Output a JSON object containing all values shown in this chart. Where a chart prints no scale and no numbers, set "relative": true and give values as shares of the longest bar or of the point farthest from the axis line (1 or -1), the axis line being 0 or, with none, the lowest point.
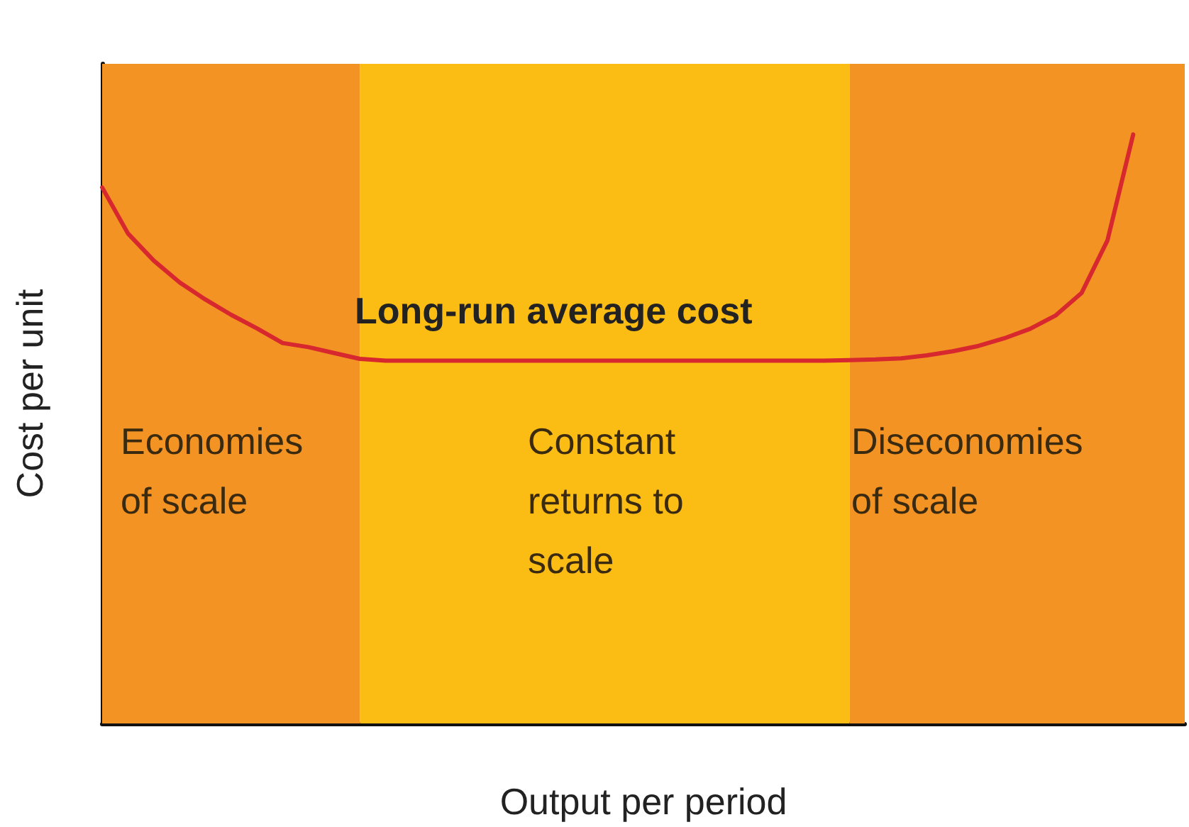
{
  "chart_data": {
    "type": "line",
    "xlabel": "Output per period",
    "ylabel": "Cost per unit",
    "relative": true,
    "categories": [
      null,
      null,
      null,
      null,
      null,
      null,
      null,
      null,
      null,
      null,
      null,
      null,
      null,
      null,
      null,
      null,
      null,
      null,
      null,
      null,
      null,
      null,
      null,
      null,
      null,
      null,
      null,
      null,
      null,
      null,
      null,
      null,
      null,
      null,
      null,
      null,
      null,
      null,
      null,
      null,
      null,
      null,
      null
    ],
    "grid": false,
    "marker": "none",
    "series": [
      {
        "color": "#d7282f",
        "values": [
          0.91,
          0.832,
          0.786,
          0.749,
          0.72,
          0.694,
          0.671,
          0.646,
          0.639,
          0.629,
          0.619,
          0.616,
          0.616,
          0.616,
          0.616,
          0.616,
          0.616,
          0.616,
          0.616,
          0.616,
          0.616,
          0.616,
          0.616,
          0.616,
          0.616,
          0.616,
          0.616,
          0.616,
          0.616,
          0.617,
          0.618,
          0.62,
          0.625,
          0.632,
          0.641,
          0.654,
          0.67,
          0.693,
          0.731,
          0.82,
          1,
          null,
          null
        ]
      }
    ],
    "annotations": [
      "Long-run average cost",
      "Economies of scale",
      "Constant returns to scale",
      "Diseconomies of scale"
    ]
  }
}
